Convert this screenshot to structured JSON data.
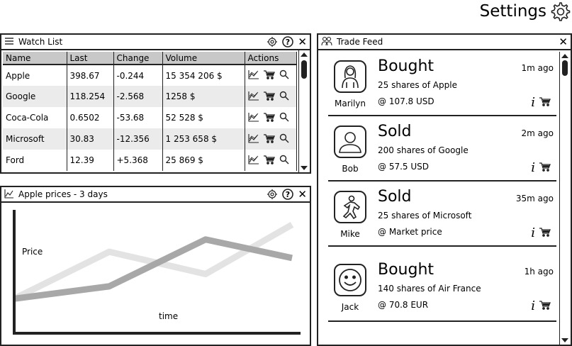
{
  "header": {
    "title": "Settings"
  },
  "watchlist": {
    "title": "Watch List",
    "columns": [
      "Name",
      "Last",
      "Change",
      "Volume",
      "Actions"
    ],
    "rows": [
      {
        "name": "Apple",
        "last": "398.67",
        "change": "-0.244",
        "volume": "15 354 206 $"
      },
      {
        "name": "Google",
        "last": "118.254",
        "change": "-2.568",
        "volume": "1258 $"
      },
      {
        "name": "Coca-Cola",
        "last": "0.6502",
        "change": "-53.68",
        "volume": "52 528 $"
      },
      {
        "name": "Microsoft",
        "last": "30.83",
        "change": "-12.356",
        "volume": "1 253 658 $"
      },
      {
        "name": "Ford",
        "last": "12.39",
        "change": "+5.368",
        "volume": "25 869 $"
      }
    ]
  },
  "chart_panel": {
    "title": "Apple prices - 3 days"
  },
  "chart_data": {
    "type": "line",
    "xlabel": "time",
    "ylabel": "Price",
    "grid": false,
    "series": [
      {
        "color": "#e3e3e3",
        "values": [
          0.28,
          0.66,
          0.48,
          0.88
        ]
      },
      {
        "color": "#a8a8a8",
        "values": [
          0.28,
          0.38,
          0.76,
          0.61
        ]
      }
    ]
  },
  "feed": {
    "title": "Trade Feed",
    "trades": [
      {
        "user": "Marilyn",
        "action": "Bought",
        "detail": "25 shares of Apple",
        "price": "@ 107.8 USD",
        "time": "1m ago",
        "avatar": "woman-avatar-icon"
      },
      {
        "user": "Bob",
        "action": "Sold",
        "detail": "200 shares of Google",
        "price": "@ 57.5 USD",
        "time": "2m ago",
        "avatar": "person-avatar-icon"
      },
      {
        "user": "Mike",
        "action": "Sold",
        "detail": "25 shares of Microsoft",
        "price": "@ Market price",
        "time": "35m ago",
        "avatar": "running-man-icon"
      },
      {
        "user": "Jack",
        "action": "Bought",
        "detail": "140 shares of Air France",
        "price": "@ 70.8 EUR",
        "time": "1h ago",
        "avatar": "smiley-icon"
      }
    ]
  }
}
